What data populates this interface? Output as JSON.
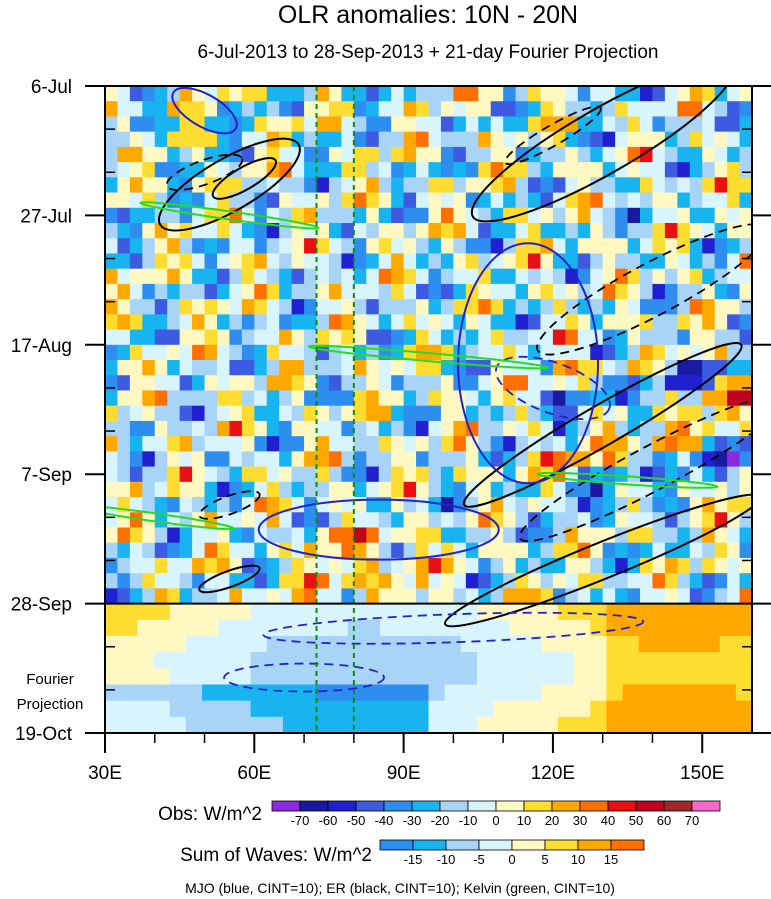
{
  "chart_data": {
    "type": "heatmap",
    "title": "OLR anomalies: 10N - 20N",
    "subtitle": "6-Jul-2013 to 28-Sep-2013 + 21-day Fourier Projection",
    "x_axis": {
      "range": [
        30,
        160
      ],
      "tick_values": [
        30,
        60,
        90,
        120,
        150
      ],
      "tick_labels": [
        "30E",
        "60E",
        "90E",
        "120E",
        "150E"
      ]
    },
    "y_axis": {
      "range_days": [
        0,
        105
      ],
      "tick_days": [
        0,
        21,
        42,
        63,
        84,
        105
      ],
      "tick_labels": [
        "6-Jul",
        "27-Jul",
        "17-Aug",
        "7-Sep",
        "28-Sep",
        "19-Oct"
      ],
      "projection_label_1": "Fourier",
      "projection_label_2": "Projection",
      "projection_start_day": 84
    },
    "reference_lines_lon": [
      72.5,
      80
    ],
    "obs_colorbar": {
      "label": "Obs: W/m^2",
      "levels": [
        "-70",
        "-60",
        "-50",
        "-40",
        "-30",
        "-20",
        "-10",
        "0",
        "10",
        "20",
        "30",
        "40",
        "50",
        "60",
        "70"
      ],
      "colors": [
        "#8a2be2",
        "#1a1aa0",
        "#2020d0",
        "#3c5be0",
        "#2e8ef0",
        "#18b4f0",
        "#a8d4f8",
        "#d8f4fc",
        "#fff8c0",
        "#ffdc30",
        "#ffa800",
        "#ff7000",
        "#e81010",
        "#c00020",
        "#a02828",
        "#ff66cc"
      ]
    },
    "waves_colorbar": {
      "label": "Sum of Waves: W/m^2",
      "levels": [
        "-15",
        "-10",
        "-5",
        "0",
        "5",
        "10",
        "15"
      ],
      "colors": [
        "#2e8ef0",
        "#18b4f0",
        "#a8d4f8",
        "#d8f4fc",
        "#fff8c0",
        "#ffdc30",
        "#ffa800",
        "#ff7000"
      ]
    },
    "footnote": "MJO (blue, CINT=10); ER (black, CINT=10); Kelvin (green, CINT=10)",
    "contour_colors": {
      "mjo": "#2222cc",
      "er": "#000000",
      "kelvin": "#22dd22"
    }
  }
}
